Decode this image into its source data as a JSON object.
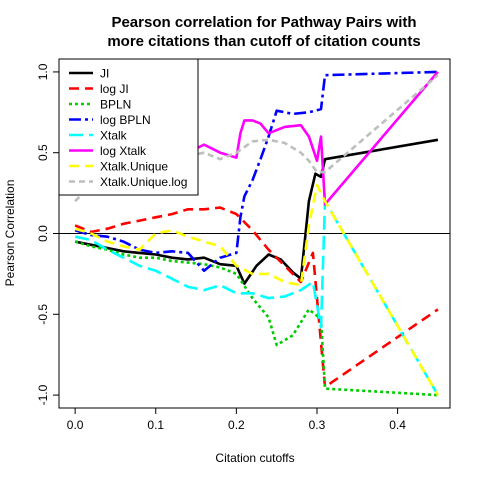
{
  "chart_data": {
    "type": "line",
    "title": "Pearson correlation for Pathway Pairs with",
    "title_line2": "more citations than cutoff of citation counts",
    "xlabel": "Citation cutoffs",
    "ylabel": "Pearson Correlation",
    "xlim": [
      -0.02,
      0.465
    ],
    "ylim": [
      -1.08,
      1.08
    ],
    "x_ticks": [
      0.0,
      0.1,
      0.2,
      0.3,
      0.4
    ],
    "x_tick_labels": [
      "0.0",
      "0.1",
      "0.2",
      "0.3",
      "0.4"
    ],
    "y_ticks": [
      -1.0,
      -0.5,
      0.0,
      0.5,
      1.0
    ],
    "y_tick_labels": [
      "-1.0",
      "-0.5",
      "0.0",
      "0.5",
      "1.0"
    ],
    "reference_line_y": 0,
    "legend_position": "top-left",
    "series": [
      {
        "name": "JI",
        "color": "#000000",
        "dash": "solid",
        "points": [
          [
            0.0,
            -0.05
          ],
          [
            0.02,
            -0.07
          ],
          [
            0.04,
            -0.09
          ],
          [
            0.06,
            -0.11
          ],
          [
            0.08,
            -0.12
          ],
          [
            0.1,
            -0.13
          ],
          [
            0.12,
            -0.15
          ],
          [
            0.14,
            -0.16
          ],
          [
            0.16,
            -0.15
          ],
          [
            0.18,
            -0.19
          ],
          [
            0.2,
            -0.2
          ],
          [
            0.21,
            -0.31
          ],
          [
            0.225,
            -0.2
          ],
          [
            0.24,
            -0.13
          ],
          [
            0.255,
            -0.16
          ],
          [
            0.27,
            -0.24
          ],
          [
            0.28,
            -0.28
          ],
          [
            0.29,
            0.2
          ],
          [
            0.298,
            0.37
          ],
          [
            0.305,
            0.35
          ],
          [
            0.31,
            0.46
          ],
          [
            0.45,
            0.58
          ]
        ]
      },
      {
        "name": "log JI",
        "color": "#ff0000",
        "dash": "10,6",
        "points": [
          [
            0.0,
            0.05
          ],
          [
            0.02,
            0.01
          ],
          [
            0.04,
            0.03
          ],
          [
            0.06,
            0.06
          ],
          [
            0.08,
            0.08
          ],
          [
            0.1,
            0.1
          ],
          [
            0.12,
            0.12
          ],
          [
            0.14,
            0.15
          ],
          [
            0.16,
            0.15
          ],
          [
            0.18,
            0.16
          ],
          [
            0.2,
            0.12
          ],
          [
            0.22,
            0.02
          ],
          [
            0.24,
            -0.1
          ],
          [
            0.26,
            -0.2
          ],
          [
            0.28,
            -0.3
          ],
          [
            0.295,
            -0.12
          ],
          [
            0.31,
            -0.95
          ],
          [
            0.45,
            -0.47
          ]
        ]
      },
      {
        "name": "BPLN",
        "color": "#00cc00",
        "dash": "3,3",
        "points": [
          [
            0.0,
            -0.05
          ],
          [
            0.02,
            -0.08
          ],
          [
            0.04,
            -0.1
          ],
          [
            0.06,
            -0.13
          ],
          [
            0.08,
            -0.15
          ],
          [
            0.1,
            -0.15
          ],
          [
            0.12,
            -0.17
          ],
          [
            0.14,
            -0.18
          ],
          [
            0.16,
            -0.19
          ],
          [
            0.18,
            -0.21
          ],
          [
            0.2,
            -0.25
          ],
          [
            0.22,
            -0.4
          ],
          [
            0.24,
            -0.52
          ],
          [
            0.25,
            -0.69
          ],
          [
            0.27,
            -0.63
          ],
          [
            0.29,
            -0.47
          ],
          [
            0.305,
            -0.53
          ],
          [
            0.31,
            -0.96
          ],
          [
            0.45,
            -1.0
          ]
        ]
      },
      {
        "name": "log BPLN",
        "color": "#0000ff",
        "dash": "12,4,3,4",
        "points": [
          [
            0.0,
            0.02
          ],
          [
            0.02,
            -0.01
          ],
          [
            0.04,
            -0.02
          ],
          [
            0.06,
            -0.05
          ],
          [
            0.08,
            -0.1
          ],
          [
            0.1,
            -0.12
          ],
          [
            0.12,
            -0.11
          ],
          [
            0.14,
            -0.12
          ],
          [
            0.16,
            -0.23
          ],
          [
            0.18,
            -0.15
          ],
          [
            0.2,
            -0.12
          ],
          [
            0.205,
            0.1
          ],
          [
            0.21,
            0.23
          ],
          [
            0.22,
            0.33
          ],
          [
            0.23,
            0.46
          ],
          [
            0.24,
            0.6
          ],
          [
            0.25,
            0.76
          ],
          [
            0.27,
            0.74
          ],
          [
            0.29,
            0.75
          ],
          [
            0.305,
            0.77
          ],
          [
            0.31,
            0.98
          ],
          [
            0.45,
            1.0
          ]
        ]
      },
      {
        "name": "Xtalk",
        "color": "#00ffff",
        "dash": "14,6",
        "points": [
          [
            0.0,
            -0.02
          ],
          [
            0.02,
            -0.04
          ],
          [
            0.04,
            -0.1
          ],
          [
            0.06,
            -0.15
          ],
          [
            0.08,
            -0.2
          ],
          [
            0.1,
            -0.23
          ],
          [
            0.12,
            -0.28
          ],
          [
            0.14,
            -0.33
          ],
          [
            0.16,
            -0.35
          ],
          [
            0.18,
            -0.32
          ],
          [
            0.2,
            -0.37
          ],
          [
            0.22,
            -0.37
          ],
          [
            0.24,
            -0.4
          ],
          [
            0.26,
            -0.39
          ],
          [
            0.28,
            -0.35
          ],
          [
            0.295,
            -0.3
          ],
          [
            0.305,
            -0.58
          ],
          [
            0.31,
            0.2
          ],
          [
            0.45,
            -1.0
          ]
        ]
      },
      {
        "name": "log Xtalk",
        "color": "#ff00ff",
        "dash": "solid",
        "points": [
          [
            0.0,
            0.3
          ],
          [
            0.02,
            0.45
          ],
          [
            0.04,
            0.5
          ],
          [
            0.06,
            0.53
          ],
          [
            0.08,
            0.5
          ],
          [
            0.1,
            0.55
          ],
          [
            0.12,
            0.6
          ],
          [
            0.14,
            0.5
          ],
          [
            0.16,
            0.55
          ],
          [
            0.18,
            0.5
          ],
          [
            0.2,
            0.47
          ],
          [
            0.205,
            0.62
          ],
          [
            0.21,
            0.7
          ],
          [
            0.22,
            0.7
          ],
          [
            0.23,
            0.68
          ],
          [
            0.24,
            0.62
          ],
          [
            0.26,
            0.66
          ],
          [
            0.28,
            0.67
          ],
          [
            0.29,
            0.6
          ],
          [
            0.3,
            0.45
          ],
          [
            0.305,
            0.6
          ],
          [
            0.31,
            0.18
          ],
          [
            0.45,
            1.0
          ]
        ]
      },
      {
        "name": "Xtalk.Unique",
        "color": "#ffff00",
        "dash": "10,6",
        "points": [
          [
            0.0,
            0.03
          ],
          [
            0.02,
            0.0
          ],
          [
            0.04,
            -0.05
          ],
          [
            0.06,
            -0.08
          ],
          [
            0.08,
            -0.1
          ],
          [
            0.1,
            0.0
          ],
          [
            0.12,
            0.02
          ],
          [
            0.14,
            -0.02
          ],
          [
            0.16,
            -0.05
          ],
          [
            0.18,
            -0.08
          ],
          [
            0.2,
            -0.2
          ],
          [
            0.22,
            -0.25
          ],
          [
            0.24,
            -0.25
          ],
          [
            0.26,
            -0.3
          ],
          [
            0.28,
            -0.32
          ],
          [
            0.29,
            0.05
          ],
          [
            0.3,
            0.3
          ],
          [
            0.31,
            0.2
          ],
          [
            0.45,
            -1.0
          ]
        ]
      },
      {
        "name": "Xtalk.Unique.log",
        "color": "#bebebe",
        "dash": "6,4",
        "points": [
          [
            0.0,
            0.2
          ],
          [
            0.02,
            0.3
          ],
          [
            0.04,
            0.4
          ],
          [
            0.06,
            0.45
          ],
          [
            0.08,
            0.45
          ],
          [
            0.1,
            0.48
          ],
          [
            0.12,
            0.5
          ],
          [
            0.14,
            0.48
          ],
          [
            0.16,
            0.5
          ],
          [
            0.18,
            0.46
          ],
          [
            0.2,
            0.5
          ],
          [
            0.22,
            0.57
          ],
          [
            0.24,
            0.58
          ],
          [
            0.26,
            0.56
          ],
          [
            0.28,
            0.5
          ],
          [
            0.29,
            0.45
          ],
          [
            0.3,
            0.38
          ],
          [
            0.31,
            0.38
          ],
          [
            0.45,
            0.98
          ]
        ]
      }
    ]
  }
}
